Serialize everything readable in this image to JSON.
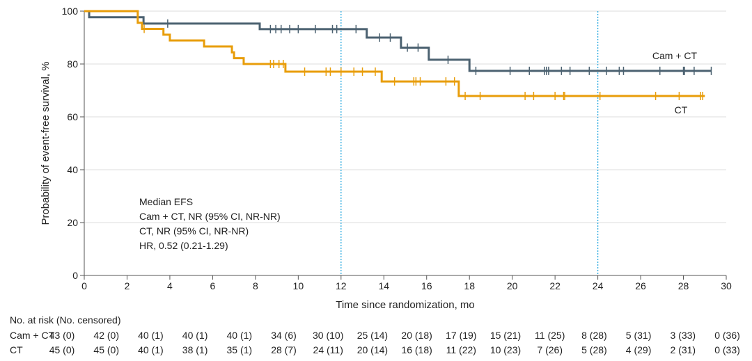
{
  "chart_data": {
    "type": "line",
    "subtype": "kaplan-meier step",
    "xlabel": "Time since randomization, mo",
    "ylabel": "Probability of event-free survival, %",
    "xlim": [
      0,
      30
    ],
    "ylim": [
      0,
      100
    ],
    "xticks": [
      0,
      2,
      4,
      6,
      8,
      10,
      12,
      14,
      16,
      18,
      20,
      22,
      24,
      26,
      28,
      30
    ],
    "yticks": [
      0,
      20,
      40,
      60,
      80,
      100
    ],
    "grid": "horizontal",
    "reference_lines_x": [
      12,
      24
    ],
    "colors": {
      "Cam + CT": "#4b6170",
      "CT": "#e89d0a",
      "reference": "#29a9e0",
      "grid": "#e3e3e3"
    },
    "series": [
      {
        "name": "Cam + CT",
        "steps": [
          [
            0,
            100
          ],
          [
            0.23,
            97.7
          ],
          [
            2.77,
            95.3
          ],
          [
            8.2,
            93.2
          ],
          [
            13.2,
            90.0
          ],
          [
            14.8,
            86.2
          ],
          [
            16.1,
            81.6
          ],
          [
            18.0,
            77.4
          ]
        ],
        "end": 29.3,
        "censored": [
          3.9,
          8.7,
          8.95,
          9.2,
          9.6,
          10.0,
          10.8,
          11.6,
          11.8,
          12.7,
          13.8,
          14.3,
          15.1,
          15.6,
          17.0,
          18.3,
          19.9,
          20.8,
          21.5,
          21.6,
          21.7,
          22.3,
          22.7,
          23.6,
          24.4,
          25.0,
          25.2,
          26.9,
          28.0,
          28.05,
          28.5,
          29.3
        ]
      },
      {
        "name": "CT",
        "steps": [
          [
            0,
            100
          ],
          [
            2.5,
            95.6
          ],
          [
            2.7,
            93.3
          ],
          [
            3.7,
            91.1
          ],
          [
            4.0,
            88.9
          ],
          [
            5.6,
            86.6
          ],
          [
            6.9,
            84.4
          ],
          [
            7.0,
            82.2
          ],
          [
            7.45,
            80.0
          ],
          [
            9.4,
            77.1
          ],
          [
            13.9,
            73.4
          ],
          [
            17.5,
            67.9
          ]
        ],
        "end": 29.0,
        "censored": [
          2.8,
          8.7,
          8.85,
          9.1,
          9.3,
          10.3,
          11.3,
          11.5,
          12.0,
          12.6,
          13.0,
          13.6,
          14.5,
          15.4,
          15.5,
          15.7,
          16.9,
          17.3,
          17.8,
          18.5,
          20.6,
          21.0,
          22.0,
          22.4,
          22.45,
          24.1,
          26.7,
          27.8,
          28.8,
          28.9
        ]
      }
    ],
    "series_labels": [
      "Cam + CT",
      "CT"
    ],
    "annotation": [
      "Median EFS",
      "Cam + CT, NR (95% CI, NR-NR)",
      "CT, NR (95% CI, NR-NR)",
      "HR, 0.52 (0.21-1.29)"
    ],
    "risk_table": {
      "title": "No. at risk (No. censored)",
      "rows": [
        {
          "label": "Cam + CT",
          "values": [
            "43 (0)",
            "42 (0)",
            "40 (1)",
            "40 (1)",
            "40 (1)",
            "34 (6)",
            "30 (10)",
            "25 (14)",
            "20 (18)",
            "17 (19)",
            "15 (21)",
            "11 (25)",
            "8 (28)",
            "5 (31)",
            "3 (33)",
            "0 (36)"
          ]
        },
        {
          "label": "CT",
          "values": [
            "45 (0)",
            "45 (0)",
            "40 (1)",
            "38 (1)",
            "35 (1)",
            "28 (7)",
            "24 (11)",
            "20 (14)",
            "16 (18)",
            "11 (22)",
            "10 (23)",
            "7 (26)",
            "5 (28)",
            "4 (29)",
            "2 (31)",
            "0 (33)"
          ]
        }
      ]
    }
  }
}
